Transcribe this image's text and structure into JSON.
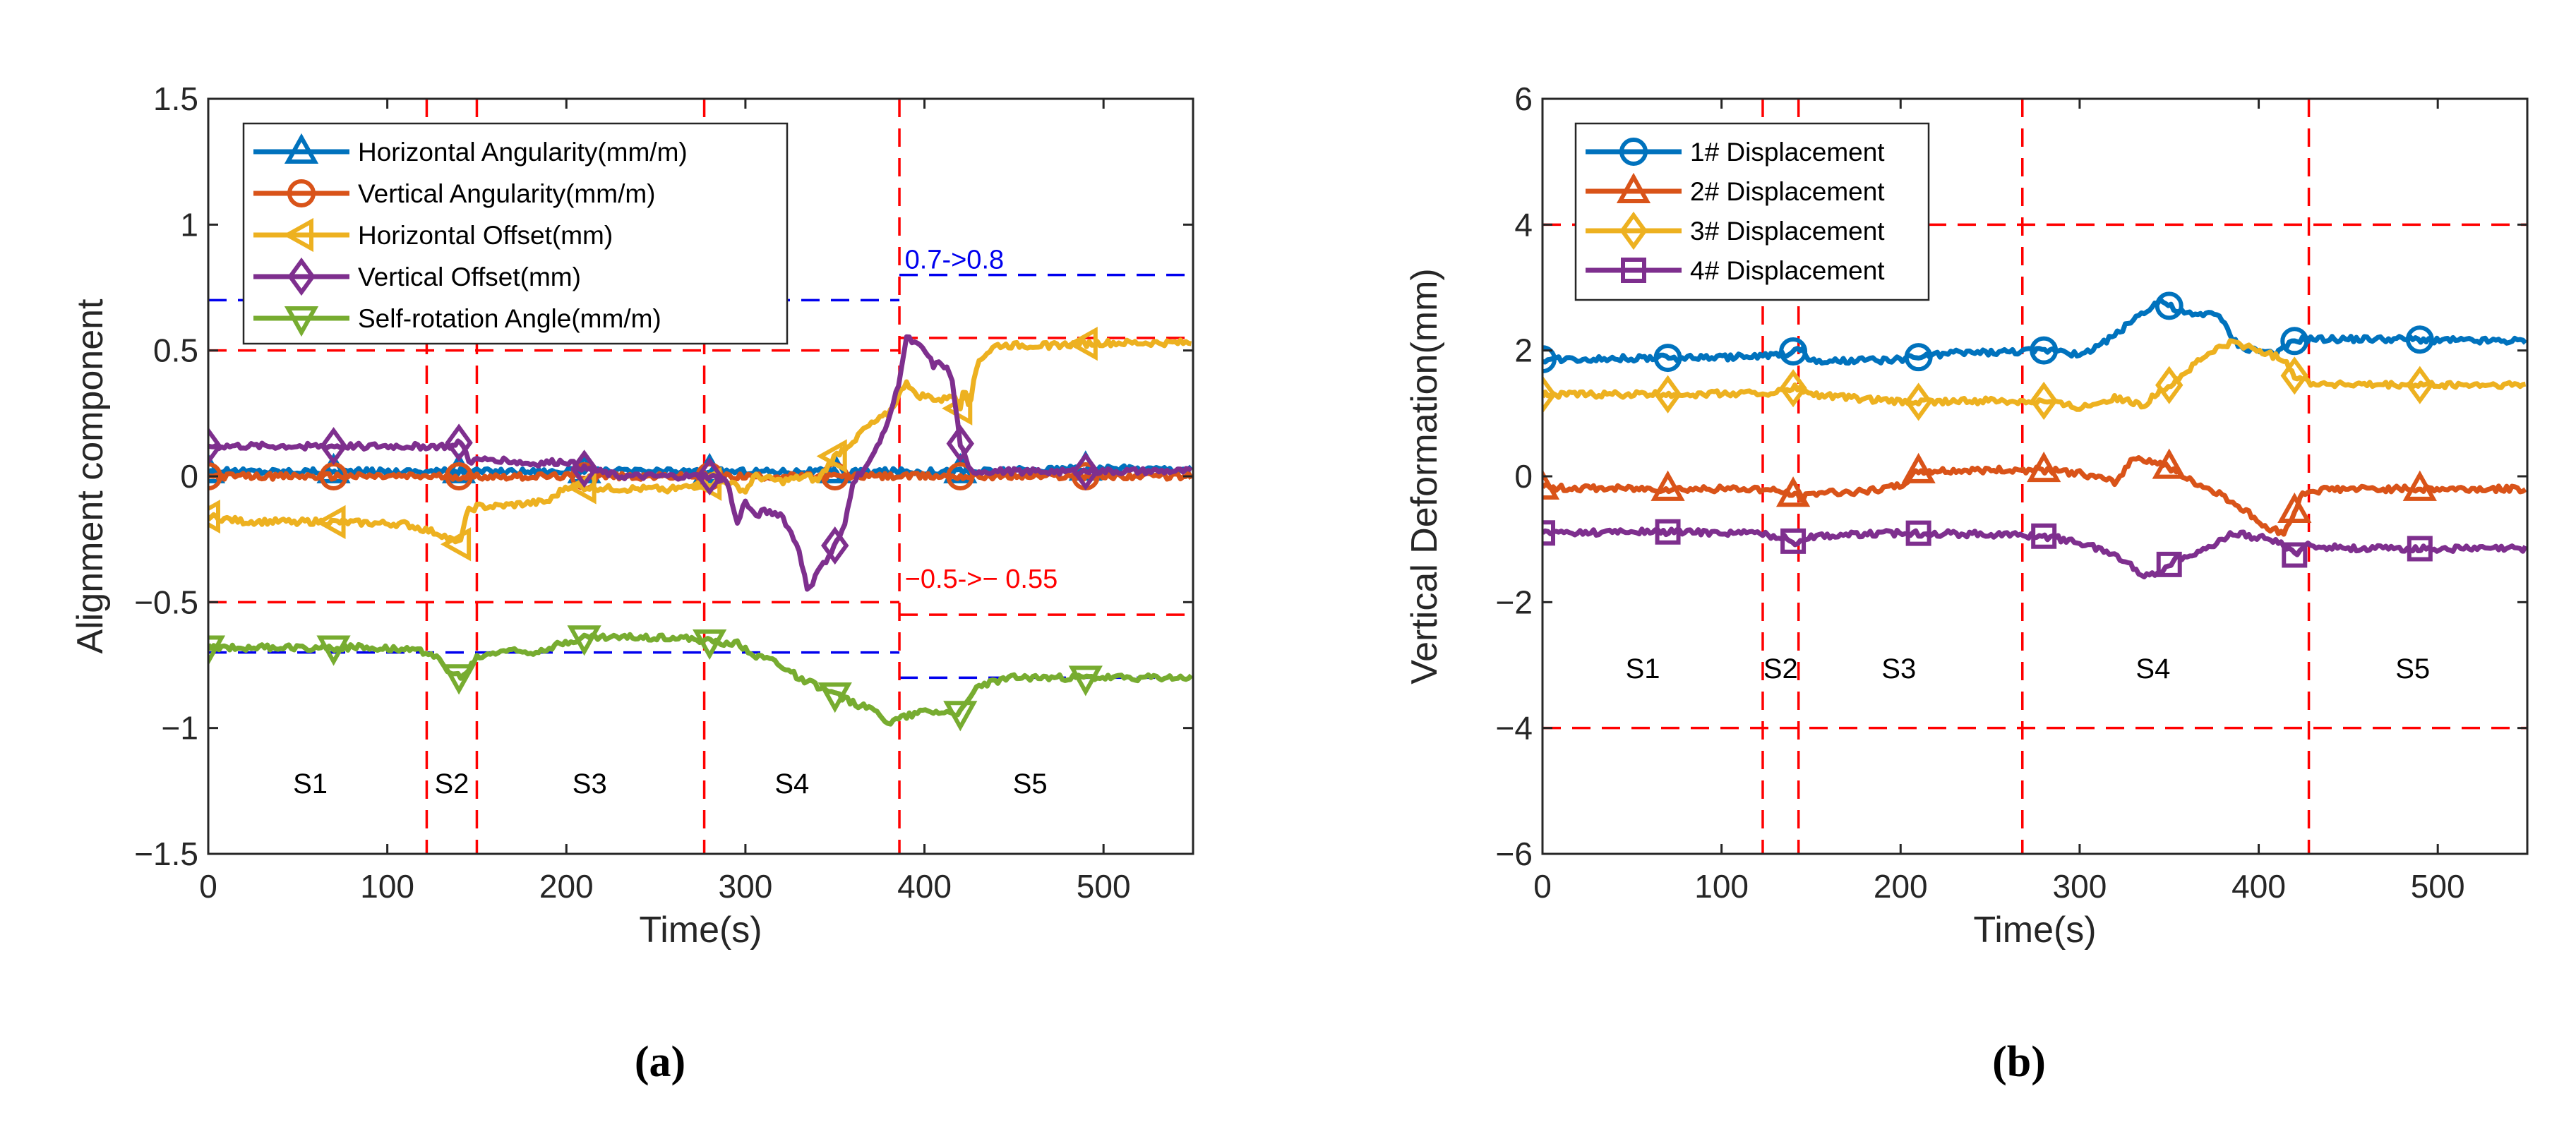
{
  "chart_data": [
    {
      "id": "a",
      "type": "line",
      "panel_label": "(a)",
      "xlabel": "Time(s)",
      "ylabel": "Alignment component",
      "xlim": [
        0,
        550
      ],
      "ylim": [
        -1.5,
        1.5
      ],
      "xticks": [
        0,
        100,
        200,
        300,
        400,
        500
      ],
      "yticks": [
        -1.5,
        -1,
        -0.5,
        0,
        0.5,
        1,
        1.5
      ],
      "xtick_labels": [
        "0",
        "100",
        "200",
        "300",
        "400",
        "500"
      ],
      "ytick_labels": [
        "−1.5",
        "−1",
        "−0.5",
        "0",
        "0.5",
        "1",
        "1.5"
      ],
      "legend_position": "top-left",
      "stage_boundaries": [
        122,
        150,
        277,
        386
      ],
      "stage_labels": [
        {
          "text": "S1",
          "x": 57,
          "y": -1.22
        },
        {
          "text": "S2",
          "x": 136,
          "y": -1.22
        },
        {
          "text": "S3",
          "x": 213,
          "y": -1.22
        },
        {
          "text": "S4",
          "x": 326,
          "y": -1.22
        },
        {
          "text": "S5",
          "x": 459,
          "y": -1.22
        }
      ],
      "threshold_lines": [
        {
          "color": "#0000ee",
          "y": 0.7,
          "x_from": 0,
          "x_to": 386
        },
        {
          "color": "#0000ee",
          "y": 0.8,
          "x_from": 386,
          "x_to": 550
        },
        {
          "color": "#0000ee",
          "y": -0.7,
          "x_from": 0,
          "x_to": 386
        },
        {
          "color": "#0000ee",
          "y": -0.8,
          "x_from": 386,
          "x_to": 550
        },
        {
          "color": "#ff0000",
          "y": 0.5,
          "x_from": 0,
          "x_to": 386
        },
        {
          "color": "#ff0000",
          "y": 0.55,
          "x_from": 386,
          "x_to": 550
        },
        {
          "color": "#ff0000",
          "y": -0.5,
          "x_from": 0,
          "x_to": 386
        },
        {
          "color": "#ff0000",
          "y": -0.55,
          "x_from": 386,
          "x_to": 550
        }
      ],
      "annotations": [
        {
          "text": "0.7->0.8",
          "x": 389,
          "y": 0.86,
          "color": "#0000ee"
        },
        {
          "text": "−0.5->− 0.55",
          "x": 389,
          "y": -0.41,
          "color": "#ff0000"
        }
      ],
      "series": [
        {
          "name": "Horizontal Angularity(mm/m)",
          "color": "#0072bd",
          "marker": "triangle-up",
          "x": [
            0,
            100,
            200,
            280,
            300,
            350,
            355,
            360,
            386,
            420,
            430,
            490,
            550
          ],
          "y": [
            0.02,
            0.02,
            0.02,
            0.02,
            0.02,
            0.02,
            -0.02,
            0.02,
            0.02,
            0.02,
            0.02,
            0.03,
            0.03
          ],
          "marker_x": [
            0,
            70,
            140,
            210,
            280,
            350,
            420,
            490
          ]
        },
        {
          "name": "Vertical Angularity(mm/m)",
          "color": "#d95319",
          "marker": "circle",
          "x": [
            0,
            550
          ],
          "y": [
            0.0,
            0.0
          ],
          "marker_x": [
            0,
            70,
            140,
            210,
            280,
            350,
            420,
            490
          ]
        },
        {
          "name": "Horizontal Offset(mm)",
          "color": "#edb120",
          "marker": "triangle-left",
          "x": [
            0,
            20,
            60,
            110,
            130,
            140,
            145,
            150,
            160,
            190,
            200,
            230,
            260,
            290,
            300,
            305,
            320,
            335,
            340,
            350,
            360,
            365,
            380,
            385,
            390,
            395,
            400,
            410,
            415,
            420,
            422,
            425,
            430,
            440,
            470,
            500,
            550
          ],
          "y": [
            -0.16,
            -0.18,
            -0.18,
            -0.19,
            -0.23,
            -0.27,
            -0.14,
            -0.12,
            -0.12,
            -0.1,
            -0.04,
            -0.05,
            -0.05,
            -0.02,
            -0.06,
            0.0,
            -0.02,
            0.0,
            -0.02,
            0.08,
            0.14,
            0.18,
            0.25,
            0.31,
            0.38,
            0.32,
            0.32,
            0.3,
            0.33,
            0.27,
            0.37,
            0.28,
            0.46,
            0.52,
            0.52,
            0.53,
            0.53
          ],
          "marker_x": [
            0,
            70,
            140,
            210,
            280,
            350,
            420,
            490
          ]
        },
        {
          "name": "Vertical Offset(mm)",
          "color": "#7e2f8e",
          "marker": "diamond",
          "x": [
            0,
            50,
            100,
            138,
            141,
            146,
            160,
            180,
            200,
            210,
            230,
            260,
            280,
            290,
            295,
            300,
            305,
            310,
            320,
            330,
            335,
            340,
            345,
            355,
            360,
            370,
            380,
            385,
            390,
            400,
            405,
            410,
            415,
            420,
            425,
            440,
            490,
            550
          ],
          "y": [
            0.12,
            0.12,
            0.12,
            0.12,
            0.14,
            0.06,
            0.07,
            0.05,
            0.06,
            0.03,
            0.0,
            0.0,
            0.0,
            -0.02,
            -0.19,
            -0.1,
            -0.16,
            -0.14,
            -0.15,
            -0.29,
            -0.47,
            -0.37,
            -0.34,
            -0.21,
            -0.02,
            0.06,
            0.23,
            0.35,
            0.55,
            0.5,
            0.44,
            0.45,
            0.4,
            0.13,
            0.02,
            0.02,
            0.02,
            0.02
          ],
          "marker_x": [
            0,
            70,
            140,
            210,
            280,
            350,
            420,
            490
          ]
        },
        {
          "name": "Self-rotation Angle(mm/m)",
          "color": "#77ac30",
          "marker": "triangle-down",
          "x": [
            0,
            30,
            60,
            100,
            125,
            135,
            142,
            150,
            165,
            180,
            200,
            210,
            230,
            260,
            285,
            295,
            305,
            315,
            330,
            345,
            360,
            375,
            380,
            386,
            400,
            420,
            430,
            450,
            470,
            490,
            520,
            550
          ],
          "y": [
            -0.68,
            -0.68,
            -0.68,
            -0.68,
            -0.7,
            -0.78,
            -0.8,
            -0.72,
            -0.69,
            -0.7,
            -0.66,
            -0.64,
            -0.64,
            -0.64,
            -0.66,
            -0.66,
            -0.71,
            -0.73,
            -0.8,
            -0.85,
            -0.9,
            -0.94,
            -0.98,
            -0.96,
            -0.93,
            -0.94,
            -0.83,
            -0.8,
            -0.8,
            -0.8,
            -0.8,
            -0.8
          ],
          "marker_x": [
            0,
            70,
            140,
            210,
            280,
            350,
            420,
            490
          ]
        }
      ]
    },
    {
      "id": "b",
      "type": "line",
      "panel_label": "(b)",
      "xlabel": "Time(s)",
      "ylabel": "Vertical Deformation(mm)",
      "xlim": [
        0,
        550
      ],
      "ylim": [
        -6,
        6
      ],
      "xticks": [
        0,
        100,
        200,
        300,
        400,
        500
      ],
      "yticks": [
        -6,
        -4,
        -2,
        0,
        2,
        4,
        6
      ],
      "xtick_labels": [
        "0",
        "100",
        "200",
        "300",
        "400",
        "500"
      ],
      "ytick_labels": [
        "−6",
        "−4",
        "−2",
        "0",
        "2",
        "4",
        "6"
      ],
      "legend_position": "top-left",
      "stage_boundaries": [
        123,
        143,
        268,
        428
      ],
      "threshold_lines": [
        {
          "color": "#ff0000",
          "y": 4,
          "x_from": 0,
          "x_to": 550
        },
        {
          "color": "#ff0000",
          "y": -4,
          "x_from": 0,
          "x_to": 550
        }
      ],
      "stage_labels": [
        {
          "text": "S1",
          "x": 56,
          "y": -3.05
        },
        {
          "text": "S2",
          "x": 133,
          "y": -3.05
        },
        {
          "text": "S3",
          "x": 199,
          "y": -3.05
        },
        {
          "text": "S4",
          "x": 341,
          "y": -3.05
        },
        {
          "text": "S5",
          "x": 486,
          "y": -3.05
        }
      ],
      "annotations": [],
      "series": [
        {
          "name": "1# Displacement",
          "color": "#0072bd",
          "marker": "circle",
          "x": [
            0,
            60,
            120,
            135,
            145,
            150,
            160,
            200,
            230,
            260,
            280,
            290,
            300,
            310,
            320,
            330,
            345,
            355,
            365,
            375,
            380,
            385,
            390,
            400,
            410,
            420,
            425,
            440,
            480,
            520,
            545,
            550
          ],
          "y": [
            1.86,
            1.88,
            1.9,
            1.95,
            2.02,
            1.82,
            1.82,
            1.86,
            1.96,
            1.98,
            2.0,
            2.02,
            1.9,
            2.08,
            2.25,
            2.5,
            2.8,
            2.62,
            2.55,
            2.62,
            2.45,
            2.2,
            2.05,
            2.0,
            1.95,
            2.15,
            2.18,
            2.18,
            2.18,
            2.15,
            2.15,
            2.15
          ],
          "marker_x": [
            0,
            70,
            140,
            210,
            280,
            350,
            420,
            490
          ]
        },
        {
          "name": "2# Displacement",
          "color": "#d95319",
          "marker": "triangle-up",
          "x": [
            0,
            60,
            120,
            135,
            145,
            155,
            180,
            200,
            210,
            250,
            280,
            300,
            320,
            330,
            340,
            350,
            360,
            380,
            395,
            405,
            415,
            420,
            425,
            440,
            480,
            550
          ],
          "y": [
            -0.18,
            -0.2,
            -0.2,
            -0.25,
            -0.34,
            -0.25,
            -0.25,
            -0.15,
            0.08,
            0.1,
            0.1,
            0.05,
            -0.1,
            0.3,
            0.25,
            0.15,
            -0.05,
            -0.3,
            -0.6,
            -0.85,
            -0.88,
            -0.55,
            -0.25,
            -0.2,
            -0.2,
            -0.2
          ],
          "marker_x": [
            0,
            70,
            140,
            210,
            280,
            350,
            420,
            490
          ]
        },
        {
          "name": "3# Displacement",
          "color": "#edb120",
          "marker": "diamond",
          "x": [
            0,
            60,
            120,
            135,
            142,
            150,
            200,
            250,
            280,
            300,
            320,
            335,
            345,
            355,
            365,
            375,
            385,
            395,
            405,
            415,
            420,
            430,
            460,
            500,
            550
          ],
          "y": [
            1.3,
            1.3,
            1.32,
            1.35,
            1.42,
            1.3,
            1.18,
            1.2,
            1.2,
            1.1,
            1.25,
            1.12,
            1.35,
            1.55,
            1.8,
            2.0,
            2.12,
            2.05,
            1.95,
            1.85,
            1.6,
            1.48,
            1.45,
            1.45,
            1.45
          ],
          "marker_x": [
            0,
            70,
            140,
            210,
            280,
            350,
            420,
            490
          ]
        },
        {
          "name": "4# Displacement",
          "color": "#7e2f8e",
          "marker": "square",
          "x": [
            0,
            60,
            120,
            135,
            142,
            150,
            200,
            250,
            280,
            300,
            320,
            330,
            338,
            345,
            355,
            365,
            375,
            385,
            395,
            405,
            415,
            420,
            425,
            460,
            500,
            550
          ],
          "y": [
            -0.9,
            -0.88,
            -0.9,
            -0.98,
            -1.05,
            -0.95,
            -0.9,
            -0.92,
            -0.95,
            -1.05,
            -1.25,
            -1.45,
            -1.6,
            -1.5,
            -1.3,
            -1.2,
            -1.1,
            -0.9,
            -0.95,
            -1.0,
            -1.1,
            -1.25,
            -1.1,
            -1.15,
            -1.15,
            -1.15
          ],
          "marker_x": [
            0,
            70,
            140,
            210,
            280,
            350,
            420,
            490
          ]
        }
      ]
    }
  ]
}
